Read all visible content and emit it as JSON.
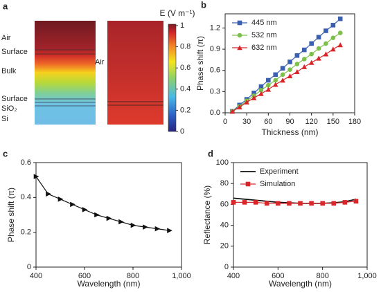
{
  "chart_data": [
    {
      "type": "field-map",
      "panel": "a",
      "left_labels": [
        "Air",
        "Surface",
        "Bulk",
        "Surface",
        "SiO₂",
        "Si"
      ],
      "right_label": "Air",
      "colorbar": {
        "title": "E (V m⁻¹)",
        "ylim": [
          0,
          1
        ],
        "yticks": [
          0,
          0.2,
          0.4,
          0.6,
          0.8,
          1
        ]
      }
    },
    {
      "type": "line",
      "panel": "b",
      "xlabel": "Thickness (nm)",
      "ylabel": "Phase shift (π)",
      "x": [
        10,
        20,
        30,
        40,
        50,
        60,
        70,
        80,
        90,
        100,
        110,
        120,
        130,
        140,
        150,
        160
      ],
      "xlim": [
        0,
        180
      ],
      "xticks": [
        0,
        30,
        60,
        90,
        120,
        150,
        180
      ],
      "ylim": [
        0,
        1.4
      ],
      "yticks": [
        {
          "value": 0,
          "label": "0.0"
        },
        0.3,
        0.6,
        0.9,
        1.2
      ],
      "legend": "upper left",
      "series": [
        {
          "name": "445 nm",
          "color": "#3a5fb0",
          "marker": "square",
          "values": [
            0.02,
            0.11,
            0.19,
            0.28,
            0.37,
            0.46,
            0.54,
            0.63,
            0.72,
            0.81,
            0.89,
            0.98,
            1.07,
            1.16,
            1.24,
            1.33
          ]
        },
        {
          "name": "532 nm",
          "color": "#7cc04b",
          "marker": "circle",
          "values": [
            0.02,
            0.09,
            0.17,
            0.24,
            0.32,
            0.39,
            0.46,
            0.54,
            0.61,
            0.69,
            0.76,
            0.83,
            0.91,
            0.98,
            1.06,
            1.13
          ]
        },
        {
          "name": "632 nm",
          "color": "#d8262a",
          "marker": "triangle",
          "values": [
            0.02,
            0.08,
            0.15,
            0.21,
            0.27,
            0.33,
            0.4,
            0.46,
            0.52,
            0.58,
            0.65,
            0.71,
            0.77,
            0.83,
            0.9,
            0.96
          ]
        }
      ]
    },
    {
      "type": "line",
      "panel": "c",
      "xlabel": "Wavelength (nm)",
      "ylabel": "Phase shift (π)",
      "x": [
        400,
        450,
        500,
        550,
        600,
        650,
        700,
        750,
        800,
        850,
        900,
        950
      ],
      "xlim": [
        400,
        1000
      ],
      "xticks": [
        400,
        600,
        800,
        {
          "value": 1000,
          "label": "1,000"
        }
      ],
      "ylim": [
        0,
        0.6
      ],
      "yticks": [
        0,
        0.2,
        0.4,
        0.6
      ],
      "series": [
        {
          "color": "#111111",
          "marker": "triangle-right",
          "values": [
            0.52,
            0.42,
            0.39,
            0.36,
            0.33,
            0.3,
            0.28,
            0.26,
            0.24,
            0.23,
            0.22,
            0.21
          ]
        }
      ]
    },
    {
      "type": "line",
      "panel": "d",
      "xlabel": "Wavelength (nm)",
      "ylabel": "Reflectance (%)",
      "x": [
        400,
        450,
        500,
        550,
        600,
        650,
        700,
        750,
        800,
        850,
        900,
        950
      ],
      "xlim": [
        400,
        1000
      ],
      "xticks": [
        400,
        600,
        800,
        {
          "value": 1000,
          "label": "1,000"
        }
      ],
      "ylim": [
        0,
        100
      ],
      "yticks": [
        0,
        20,
        40,
        60,
        80,
        100
      ],
      "legend": "upper left",
      "series": [
        {
          "name": "Experiment",
          "color": "#111111",
          "values": [
            66,
            65,
            64,
            63,
            62,
            61.5,
            61,
            61,
            61,
            61.5,
            62.5,
            65
          ]
        },
        {
          "name": "Simulation",
          "color": "#d8262a",
          "marker": "square",
          "values": [
            62,
            62,
            62,
            61,
            61,
            61,
            61,
            61,
            61,
            61,
            62,
            63
          ]
        }
      ]
    }
  ]
}
